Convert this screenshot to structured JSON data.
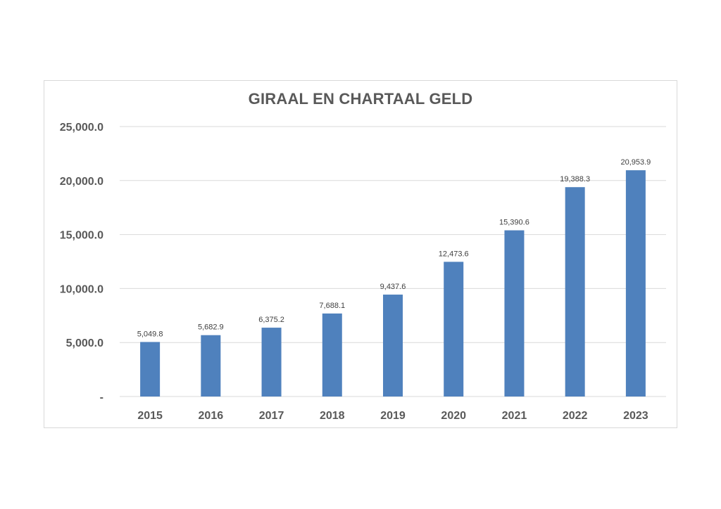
{
  "chart_data": {
    "type": "bar",
    "title": "GIRAAL EN CHARTAAL GELD",
    "categories": [
      "2015",
      "2016",
      "2017",
      "2018",
      "2019",
      "2020",
      "2021",
      "2022",
      "2023"
    ],
    "values": [
      5049.8,
      5682.9,
      6375.2,
      7688.1,
      9437.6,
      12473.6,
      15390.6,
      19388.3,
      20953.9
    ],
    "data_labels": [
      "5,049.8",
      "5,682.9",
      "6,375.2",
      "7,688.1",
      "9,437.6",
      "12,473.6",
      "15,390.6",
      "19,388.3",
      "20,953.9"
    ],
    "ylim": [
      0,
      25000
    ],
    "yticks": [
      0,
      5000,
      10000,
      15000,
      20000,
      25000
    ],
    "ytick_labels": [
      "-",
      "5,000.0",
      "10,000.0",
      "15,000.0",
      "20,000.0",
      "25,000.0"
    ],
    "xlabel": "",
    "ylabel": "",
    "grid": true,
    "legend": "none",
    "bar_color": "#4f81bd",
    "grid_color": "#d9d9d9"
  }
}
